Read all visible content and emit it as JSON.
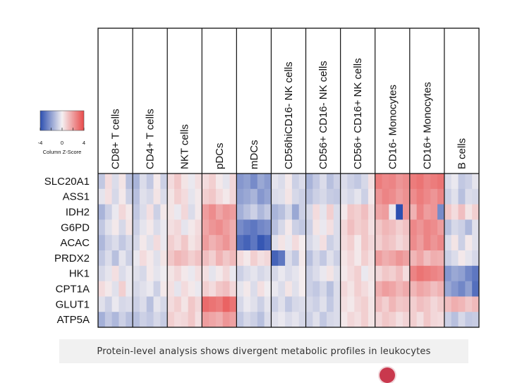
{
  "caption": "Protein-level analysis shows divergent metabolic profiles in leukocytes",
  "chart_data": {
    "type": "heatmap",
    "title": "",
    "columns": [
      "CD8+ T cells",
      "CD4+ T cells",
      "NKT cells",
      "pDCs",
      "mDCs",
      "CD56hiCD16- NK cells",
      "CD56+ CD16- NK cells",
      "CD56+ CD16+ NK cells",
      "CD16- Monocytes",
      "CD16+ Monocytes",
      "B cells"
    ],
    "rows": [
      "SLC20A1",
      "ASS1",
      "IDH2",
      "G6PD",
      "ACAC",
      "PRDX2",
      "HK1",
      "CPT1A",
      "GLUT1",
      "ATP5A"
    ],
    "samples_per_column": 5,
    "legend": {
      "title": "Column Z-Score",
      "ticks": [
        "-4",
        "0",
        "4"
      ],
      "range": [
        -4,
        4
      ],
      "colors": {
        "low": "#2c4fb0",
        "mid": "#f4f0f2",
        "high": "#e84a4a"
      }
    },
    "values": [
      [
        [
          -1.0,
          0.5,
          -0.5,
          0.3,
          -1.2
        ],
        [
          -1.5,
          -0.5,
          -1.0,
          0.2,
          -0.8
        ],
        [
          0.5,
          1.0,
          0.3,
          -0.2,
          0.4
        ],
        [
          0.5,
          0.8,
          0.2,
          -0.3,
          0.6
        ],
        [
          -2.2,
          -2.0,
          -2.5,
          -1.8,
          -2.1
        ],
        [
          -0.3,
          -0.5,
          0.2,
          -0.8,
          -0.5
        ],
        [
          -1.5,
          -1.0,
          -0.5,
          -1.2,
          -0.8
        ],
        [
          -0.5,
          -0.8,
          -1.0,
          -0.6,
          0.4
        ],
        [
          2.8,
          2.5,
          2.6,
          2.2,
          2.4
        ],
        [
          2.8,
          3.0,
          2.6,
          2.8,
          3.0
        ],
        [
          -0.5,
          -0.2,
          -1.0,
          -0.8,
          -0.3
        ]
      ],
      [
        [
          -0.3,
          0.4,
          -0.6,
          0.2,
          -0.8
        ],
        [
          -1.2,
          -0.4,
          -0.6,
          0.3,
          -0.5
        ],
        [
          0.3,
          0.8,
          0.5,
          -0.3,
          0.2
        ],
        [
          0.8,
          1.0,
          0.5,
          0.2,
          0.6
        ],
        [
          -2.0,
          -1.8,
          -1.5,
          -2.2,
          -1.9
        ],
        [
          -0.5,
          -0.4,
          0.3,
          -0.6,
          -0.8
        ],
        [
          -1.2,
          -0.8,
          -0.6,
          -0.9,
          -1.0
        ],
        [
          -0.4,
          -0.6,
          -0.3,
          -0.8,
          0.2
        ],
        [
          2.2,
          2.6,
          2.4,
          2.0,
          2.3
        ],
        [
          2.4,
          2.8,
          2.5,
          2.2,
          2.6
        ],
        [
          -0.8,
          -0.4,
          -1.2,
          -0.5,
          -0.6
        ]
      ],
      [
        [
          -1.5,
          -0.8,
          -0.2,
          0.6,
          0.2
        ],
        [
          -1.0,
          -0.5,
          0.4,
          -0.8,
          0.2
        ],
        [
          0.3,
          -0.2,
          0.6,
          -0.5,
          0.2
        ],
        [
          2.0,
          2.4,
          1.8,
          2.2,
          2.0
        ],
        [
          -1.6,
          -1.2,
          -0.8,
          -1.4,
          -1.0
        ],
        [
          -1.5,
          -1.2,
          -0.6,
          -1.8,
          -0.8
        ],
        [
          -0.6,
          0.5,
          -0.3,
          0.8,
          -0.5
        ],
        [
          0.2,
          1.0,
          0.8,
          1.2,
          0.5
        ],
        [
          1.8,
          2.0,
          -0.2,
          -4.0,
          2.2
        ],
        [
          1.5,
          2.6,
          2.0,
          2.2,
          -2.5
        ],
        [
          1.0,
          0.5,
          1.2,
          0.3,
          0.8
        ]
      ],
      [
        [
          -1.0,
          -0.4,
          0.2,
          -0.6,
          0.3
        ],
        [
          -0.8,
          -0.3,
          0.2,
          -0.5,
          -0.2
        ],
        [
          0.4,
          0.6,
          -0.3,
          0.2,
          0.5
        ],
        [
          1.8,
          2.2,
          2.4,
          2.0,
          1.6
        ],
        [
          -2.5,
          -2.8,
          -3.0,
          -2.6,
          -2.4
        ],
        [
          -1.2,
          -0.6,
          0.2,
          -0.8,
          -1.0
        ],
        [
          -0.8,
          0.3,
          -0.2,
          0.4,
          -0.5
        ],
        [
          0.6,
          1.2,
          0.8,
          1.0,
          0.4
        ],
        [
          1.0,
          1.4,
          1.2,
          0.8,
          1.1
        ],
        [
          2.5,
          2.2,
          2.6,
          2.4,
          2.0
        ],
        [
          -1.2,
          -0.6,
          -0.8,
          -1.4,
          -0.4
        ]
      ],
      [
        [
          -1.4,
          -0.8,
          -0.5,
          -1.0,
          -0.6
        ],
        [
          -0.6,
          0.2,
          -0.4,
          0.5,
          -0.2
        ],
        [
          0.8,
          0.5,
          1.0,
          0.3,
          0.6
        ],
        [
          2.0,
          1.5,
          1.8,
          2.2,
          1.6
        ],
        [
          -3.2,
          -3.5,
          -3.0,
          -3.8,
          -3.4
        ],
        [
          -0.4,
          0.3,
          -0.2,
          0.5,
          0.1
        ],
        [
          -0.6,
          -0.3,
          0.4,
          -0.8,
          -0.5
        ],
        [
          0.5,
          0.8,
          0.2,
          1.0,
          0.6
        ],
        [
          0.8,
          1.2,
          1.0,
          0.6,
          0.9
        ],
        [
          2.4,
          2.0,
          2.6,
          2.2,
          2.5
        ],
        [
          -0.5,
          0.3,
          -0.8,
          0.2,
          -0.4
        ]
      ],
      [
        [
          -1.0,
          -0.5,
          -1.2,
          -0.3,
          -0.8
        ],
        [
          -0.2,
          0.5,
          0.2,
          -0.4,
          0.3
        ],
        [
          1.0,
          1.4,
          1.2,
          0.8,
          1.1
        ],
        [
          1.2,
          0.8,
          1.5,
          1.0,
          1.3
        ],
        [
          0.5,
          0.2,
          0.8,
          0.4,
          0.6
        ],
        [
          -3.5,
          -3.0,
          -0.5,
          -1.0,
          0.2
        ],
        [
          -1.2,
          -0.6,
          -1.0,
          -0.4,
          -0.8
        ],
        [
          0.3,
          0.6,
          0.2,
          0.8,
          0.4
        ],
        [
          2.0,
          1.6,
          1.8,
          2.2,
          1.9
        ],
        [
          1.4,
          1.8,
          1.2,
          1.6,
          1.5
        ],
        [
          -0.8,
          -0.5,
          0.2,
          -0.3,
          -0.6
        ]
      ],
      [
        [
          -0.6,
          -0.3,
          0.4,
          -0.5,
          -0.2
        ],
        [
          -0.4,
          -0.6,
          0.2,
          -0.3,
          -0.1
        ],
        [
          0.3,
          0.6,
          0.2,
          -0.2,
          0.4
        ],
        [
          0.4,
          -0.3,
          0.2,
          0.6,
          -0.2
        ],
        [
          -0.8,
          -0.5,
          -0.3,
          -0.6,
          -0.4
        ],
        [
          -0.6,
          -0.2,
          -0.5,
          -0.3,
          0.1
        ],
        [
          -0.8,
          -0.5,
          -0.2,
          0.3,
          -0.4
        ],
        [
          0.2,
          0.5,
          0.8,
          -0.2,
          0.3
        ],
        [
          0.6,
          1.0,
          0.8,
          1.2,
          0.5
        ],
        [
          2.6,
          3.0,
          2.8,
          2.6,
          2.4
        ],
        [
          -2.2,
          -1.8,
          -2.0,
          -2.6,
          -3.0
        ]
      ],
      [
        [
          0.5,
          0.2,
          -0.4,
          0.8,
          -0.2
        ],
        [
          -0.6,
          -0.4,
          -0.2,
          -0.8,
          0.2
        ],
        [
          0.4,
          -0.3,
          0.5,
          0.2,
          -0.2
        ],
        [
          0.8,
          0.5,
          1.0,
          1.2,
          0.6
        ],
        [
          -0.3,
          0.2,
          -0.5,
          0.4,
          -0.1
        ],
        [
          -0.2,
          -0.5,
          0.3,
          -0.4,
          0.1
        ],
        [
          -0.8,
          -1.0,
          -0.6,
          -1.2,
          -0.5
        ],
        [
          0.6,
          0.3,
          0.8,
          0.5,
          0.2
        ],
        [
          1.6,
          2.0,
          1.8,
          1.4,
          1.7
        ],
        [
          1.4,
          1.8,
          1.6,
          1.2,
          1.5
        ],
        [
          -1.8,
          -2.2,
          -2.6,
          -2.0,
          -3.2
        ]
      ],
      [
        [
          -0.4,
          -0.8,
          -0.2,
          -0.6,
          -0.5
        ],
        [
          -0.8,
          -0.5,
          -1.2,
          -0.3,
          -0.6
        ],
        [
          0.5,
          0.8,
          0.3,
          1.0,
          0.6
        ],
        [
          3.2,
          3.0,
          2.8,
          3.4,
          3.0
        ],
        [
          -0.6,
          -0.2,
          -0.4,
          -0.8,
          -0.3
        ],
        [
          -0.8,
          -0.4,
          -1.0,
          -0.6,
          -0.5
        ],
        [
          -0.6,
          -0.8,
          -0.4,
          -1.0,
          -0.5
        ],
        [
          0.4,
          0.2,
          0.6,
          0.8,
          0.3
        ],
        [
          1.2,
          0.8,
          1.4,
          1.0,
          1.1
        ],
        [
          0.8,
          1.2,
          1.0,
          0.6,
          0.9
        ],
        [
          1.2,
          1.6,
          1.4,
          1.0,
          1.3
        ]
      ],
      [
        [
          -1.6,
          -1.0,
          -1.4,
          -0.8,
          -1.2
        ],
        [
          -1.2,
          -0.8,
          -1.0,
          -0.6,
          -0.9
        ],
        [
          0.8,
          0.5,
          0.6,
          1.0,
          0.4
        ],
        [
          2.0,
          1.8,
          1.6,
          2.2,
          1.9
        ],
        [
          -1.0,
          -0.6,
          -0.8,
          -1.2,
          -0.5
        ],
        [
          -0.4,
          -0.2,
          -0.5,
          -0.3,
          -0.6
        ],
        [
          -0.8,
          -0.4,
          -1.0,
          -0.6,
          -0.5
        ],
        [
          0.2,
          0.6,
          0.4,
          0.8,
          0.3
        ],
        [
          0.6,
          1.0,
          0.8,
          0.4,
          0.7
        ],
        [
          0.8,
          0.4,
          1.0,
          0.6,
          0.5
        ],
        [
          -0.8,
          -1.2,
          -0.6,
          -1.0,
          -0.9
        ]
      ]
    ]
  }
}
